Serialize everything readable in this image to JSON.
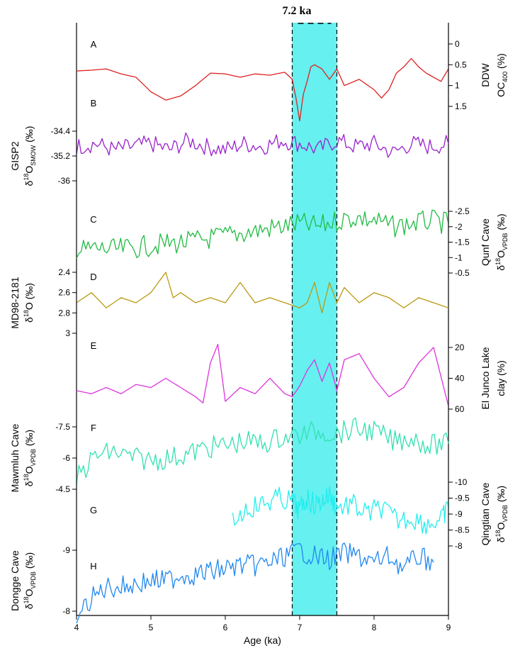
{
  "chart_data": {
    "type": "line",
    "title": "7.2 ka",
    "xlabel": "Age (ka)",
    "xlim": [
      4,
      9
    ],
    "xticks": [
      4,
      5,
      6,
      7,
      8,
      9
    ],
    "xtick_labels": [
      "4",
      "5",
      "6",
      "7",
      "8",
      "9"
    ],
    "event_band": {
      "x0": 6.9,
      "x1": 7.5,
      "color": "#66f0f0"
    },
    "axes": [
      {
        "side": "right",
        "label_main": "DDW",
        "label_pre": "OC",
        "label_sub": "400",
        "label_post": " (%)",
        "range": [
          0,
          1.5
        ],
        "ticks": [
          0,
          0.5,
          1,
          1.5
        ],
        "tick_labels": [
          "0",
          "0.5",
          "1",
          "1.5"
        ]
      },
      {
        "side": "left",
        "label_main": "GISP2",
        "label_pre": "δ",
        "label_sup": "18",
        "label_mid": "O",
        "label_sub": "SMOW",
        "label_post": " (‰)",
        "range": [
          -34.4,
          -36
        ],
        "ticks": [
          -34.4,
          -35.2,
          -36
        ],
        "tick_labels": [
          "-34.4",
          "-35.2",
          "-36"
        ]
      },
      {
        "side": "right",
        "label_main": "Qunf Cave",
        "label_pre": "δ",
        "label_sup": "18",
        "label_mid": "O",
        "label_sub": "VPDB",
        "label_post": " (‰)",
        "range": [
          -2.5,
          -0.5
        ],
        "ticks": [
          -2.5,
          -2,
          -1.5,
          -1,
          -0.5
        ],
        "tick_labels": [
          "-2.5",
          "-2",
          "-1.5",
          "-1",
          "-0.5"
        ]
      },
      {
        "side": "left",
        "label_main": "MD98-2181",
        "label_pre": "δ",
        "label_sup": "18",
        "label_mid": "O",
        "label_sub": "",
        "label_post": " (‰)",
        "range": [
          2.4,
          3
        ],
        "ticks": [
          2.4,
          2.6,
          2.8,
          3
        ],
        "tick_labels": [
          "2.4",
          "2.6",
          "2.8",
          "3"
        ]
      },
      {
        "side": "right",
        "label_main": "El Junco Lake",
        "label_pre": "clay (%)",
        "label_sub": "",
        "label_post": "",
        "range": [
          20,
          60
        ],
        "ticks": [
          20,
          40,
          60
        ],
        "tick_labels": [
          "20",
          "40",
          "60"
        ]
      },
      {
        "side": "left",
        "label_main": "Mawmluh Cave",
        "label_pre": "δ",
        "label_sup": "18",
        "label_mid": "O",
        "label_sub": "VPDB",
        "label_post": " (‰)",
        "range": [
          -7.5,
          -4.5
        ],
        "ticks": [
          -7.5,
          -6,
          -4.5
        ],
        "tick_labels": [
          "-7.5",
          "-6",
          "-4.5"
        ]
      },
      {
        "side": "right",
        "label_main": "Qingtian Cave",
        "label_pre": "δ",
        "label_sup": "18",
        "label_mid": "O",
        "label_sub": "VPDB",
        "label_post": " (‰)",
        "range": [
          -10,
          -8
        ],
        "ticks": [
          -10,
          -9.5,
          -9,
          -8.5,
          -8
        ],
        "tick_labels": [
          "-10",
          "-9.5",
          "-9",
          "-8.5",
          "-8"
        ]
      },
      {
        "side": "left",
        "label_main": "Dongge Cave",
        "label_pre": "δ",
        "label_sup": "18",
        "label_mid": "O",
        "label_sub": "VPDB",
        "label_post": " (‰)",
        "range": [
          -9,
          -8
        ],
        "ticks": [
          -9,
          -8
        ],
        "tick_labels": [
          "-9",
          "-8"
        ]
      }
    ],
    "series": [
      {
        "letter": "A",
        "color": "#dd2222",
        "x": [
          4.0,
          4.2,
          4.4,
          4.6,
          4.8,
          5.0,
          5.2,
          5.4,
          5.6,
          5.8,
          6.0,
          6.2,
          6.4,
          6.6,
          6.8,
          6.9,
          6.95,
          7.0,
          7.05,
          7.1,
          7.15,
          7.2,
          7.3,
          7.4,
          7.5,
          7.6,
          7.8,
          8.0,
          8.1,
          8.2,
          8.3,
          8.4,
          8.5,
          8.6,
          8.7,
          8.8,
          8.9,
          9.0
        ],
        "y": [
          0.65,
          0.63,
          0.6,
          0.72,
          0.8,
          1.15,
          1.35,
          1.25,
          1.0,
          0.7,
          0.72,
          0.8,
          0.72,
          0.75,
          0.68,
          0.85,
          1.3,
          1.85,
          1.2,
          0.9,
          0.55,
          0.5,
          0.6,
          0.85,
          0.6,
          1.0,
          0.85,
          1.1,
          1.3,
          1.1,
          0.7,
          0.55,
          0.35,
          0.55,
          0.7,
          0.8,
          0.9,
          0.6
        ]
      },
      {
        "letter": "B",
        "color": "#9922cc",
        "x": [
          4.0,
          4.25,
          4.5,
          4.75,
          5.0,
          5.25,
          5.5,
          5.75,
          6.0,
          6.25,
          6.5,
          6.75,
          7.0,
          7.25,
          7.5,
          7.75,
          8.0,
          8.25,
          8.5,
          8.75,
          9.0
        ],
        "y": [
          -34.9,
          -34.8,
          -35.0,
          -34.9,
          -34.8,
          -35.0,
          -34.7,
          -34.9,
          -35.0,
          -34.8,
          -34.9,
          -34.7,
          -34.8,
          -35.0,
          -34.7,
          -34.9,
          -34.8,
          -35.1,
          -34.8,
          -34.9,
          -34.8
        ]
      },
      {
        "letter": "C",
        "color": "#22bb44",
        "x": [
          4.0,
          4.25,
          4.5,
          4.75,
          5.0,
          5.25,
          5.5,
          5.75,
          6.0,
          6.25,
          6.5,
          6.75,
          7.0,
          7.25,
          7.5,
          7.75,
          8.0,
          8.25,
          8.5,
          8.75,
          9.0
        ],
        "y": [
          -1.2,
          -1.3,
          -1.25,
          -1.3,
          -1.4,
          -1.45,
          -1.5,
          -1.6,
          -1.7,
          -1.8,
          -1.9,
          -2.0,
          -2.1,
          -2.0,
          -2.2,
          -2.3,
          -2.2,
          -2.0,
          -2.1,
          -2.2,
          -2.1
        ]
      },
      {
        "letter": "D",
        "color": "#bb9911",
        "x": [
          4.0,
          4.2,
          4.4,
          4.6,
          4.8,
          5.0,
          5.1,
          5.2,
          5.3,
          5.4,
          5.6,
          5.8,
          6.0,
          6.2,
          6.4,
          6.6,
          6.8,
          7.0,
          7.1,
          7.2,
          7.3,
          7.4,
          7.5,
          7.6,
          7.8,
          8.0,
          8.2,
          8.4,
          8.6,
          8.8,
          9.0
        ],
        "y": [
          2.7,
          2.6,
          2.75,
          2.65,
          2.7,
          2.6,
          2.5,
          2.4,
          2.65,
          2.6,
          2.7,
          2.65,
          2.7,
          2.5,
          2.7,
          2.65,
          2.7,
          2.75,
          2.7,
          2.5,
          2.8,
          2.5,
          2.7,
          2.55,
          2.7,
          2.6,
          2.65,
          2.75,
          2.65,
          2.7,
          2.75
        ]
      },
      {
        "letter": "E",
        "color": "#dd33dd",
        "x": [
          4.0,
          4.2,
          4.4,
          4.6,
          4.8,
          5.0,
          5.2,
          5.4,
          5.6,
          5.7,
          5.8,
          5.9,
          6.0,
          6.2,
          6.4,
          6.6,
          6.8,
          6.9,
          7.0,
          7.1,
          7.2,
          7.3,
          7.4,
          7.5,
          7.6,
          7.8,
          8.0,
          8.2,
          8.4,
          8.6,
          8.8,
          9.0
        ],
        "y": [
          48,
          50,
          46,
          50,
          44,
          46,
          40,
          46,
          52,
          56,
          30,
          18,
          55,
          46,
          50,
          40,
          50,
          52,
          45,
          35,
          28,
          42,
          30,
          48,
          28,
          24,
          40,
          52,
          46,
          30,
          20,
          58
        ]
      },
      {
        "letter": "F",
        "color": "#33e0b0",
        "x": [
          4.0,
          4.25,
          4.5,
          4.75,
          5.0,
          5.25,
          5.5,
          5.75,
          6.0,
          6.25,
          6.5,
          6.75,
          7.0,
          7.25,
          7.5,
          7.75,
          8.0,
          8.25,
          8.5,
          8.75,
          9.0
        ],
        "y": [
          -5.0,
          -6.1,
          -6.3,
          -6.0,
          -5.9,
          -6.0,
          -6.2,
          -6.5,
          -6.6,
          -6.8,
          -6.7,
          -7.0,
          -7.1,
          -7.3,
          -7.2,
          -7.4,
          -7.3,
          -6.8,
          -7.0,
          -6.6,
          -6.7
        ]
      },
      {
        "letter": "G",
        "color": "#22eeee",
        "x": [
          6.1,
          6.3,
          6.5,
          6.7,
          6.9,
          7.0,
          7.1,
          7.2,
          7.3,
          7.4,
          7.5,
          7.7,
          7.9,
          8.1,
          8.3,
          8.5,
          8.7,
          8.9,
          9.0
        ],
        "y": [
          -8.8,
          -9.2,
          -9.3,
          -9.5,
          -9.4,
          -9.1,
          -9.5,
          -9.3,
          -9.4,
          -9.6,
          -9.2,
          -9.3,
          -9.0,
          -9.2,
          -8.8,
          -8.9,
          -8.7,
          -8.8,
          -9.2
        ]
      },
      {
        "letter": "H",
        "color": "#2288ee",
        "x": [
          4.0,
          4.2,
          4.4,
          4.6,
          4.8,
          5.0,
          5.2,
          5.4,
          5.6,
          5.8,
          6.0,
          6.2,
          6.4,
          6.6,
          6.8,
          7.0,
          7.2,
          7.4,
          7.6,
          7.8,
          8.0,
          8.2,
          8.4,
          8.6,
          8.8
        ],
        "y": [
          -7.9,
          -8.2,
          -8.4,
          -8.4,
          -8.45,
          -8.5,
          -8.5,
          -8.6,
          -8.6,
          -8.65,
          -8.7,
          -8.75,
          -8.75,
          -8.8,
          -8.9,
          -9.0,
          -8.9,
          -8.85,
          -8.95,
          -8.9,
          -8.8,
          -8.9,
          -8.7,
          -8.9,
          -8.8
        ]
      }
    ]
  }
}
